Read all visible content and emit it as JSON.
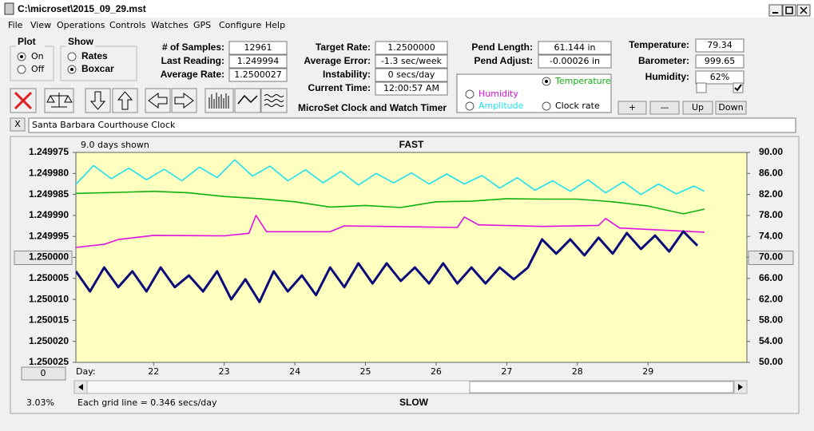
{
  "window": {
    "title": "C:\\microset\\2015_09_29.mst"
  },
  "menu": [
    "File",
    "View",
    "Operations",
    "Controls",
    "Watches",
    "GPS",
    "Configure",
    "Help"
  ],
  "plot_group": {
    "title": "Plot",
    "options": [
      "On",
      "Off"
    ],
    "selected": 0
  },
  "show_group": {
    "title": "Show",
    "options": [
      "Rates",
      "Boxcar"
    ],
    "selected": 1
  },
  "fields": [
    {
      "label": "# of Samples:",
      "value": "12961"
    },
    {
      "label": "Last Reading:",
      "value": "1.249994"
    },
    {
      "label": "Average Rate:",
      "value": "1.2500027"
    },
    {
      "label": "Target Rate:",
      "value": "1.2500000"
    },
    {
      "label": "Average Error:",
      "value": "-1.3 sec/week"
    },
    {
      "label": "Instability:",
      "value": "0 secs/day"
    },
    {
      "label": "Current Time:",
      "value": "12:00:57 AM"
    },
    {
      "label": "Pend Length:",
      "value": "61.144 in"
    },
    {
      "label": "Pend Adjust:",
      "value": "-0.00026 in"
    },
    {
      "label": "Temperature:",
      "value": "79.34"
    },
    {
      "label": "Barometer:",
      "value": "999.65"
    },
    {
      "label": "Humidity:",
      "value": "62%"
    }
  ],
  "checkboxes": [
    false,
    true
  ],
  "buttons": [
    "+",
    "—",
    "Up",
    "Down"
  ],
  "app_name": "MicroSet Clock and Watch Timer",
  "close_label": "X",
  "clock_name": "Santa Barbara Courthouse Clock",
  "status": {
    "percent": "3.03%",
    "grid_note": "Each grid line = 0.346 secs/day"
  },
  "chart_data": {
    "type": "line",
    "span_label": "9.0 days shown",
    "top_label": "FAST",
    "bottom_label": "SLOW",
    "x_label": "Day:",
    "offset_button": "0",
    "selected_series": 1,
    "button_tick": 5,
    "grid": false,
    "xlim": [
      20.9,
      30.4
    ],
    "xticks": [
      22,
      23,
      24,
      25,
      26,
      27,
      28,
      29
    ],
    "ylim": [
      1.250025,
      1.249975
    ],
    "yticks": [
      1.249975,
      {
        "value": 1.24998,
        "label": "1.249980"
      },
      1.249985,
      {
        "value": 1.24999,
        "label": "1.249990"
      },
      1.249995,
      {
        "value": 1.25,
        "label": "1.250000"
      },
      1.250005,
      {
        "value": 1.25001,
        "label": "1.250010"
      },
      1.250015,
      {
        "value": 1.25002,
        "label": "1.250020"
      },
      1.250025
    ],
    "y2lim": [
      50,
      90
    ],
    "y2ticks": [
      {
        "value": 90,
        "label": "90.00"
      },
      {
        "value": 86,
        "label": "86.00"
      },
      {
        "value": 82,
        "label": "82.00"
      },
      {
        "value": 78,
        "label": "78.00"
      },
      {
        "value": 74,
        "label": "74.00"
      },
      {
        "value": 70,
        "label": "70.00"
      },
      {
        "value": 66,
        "label": "66.00"
      },
      {
        "value": 62,
        "label": "62.00"
      },
      {
        "value": 58,
        "label": "58.00"
      },
      {
        "value": 54,
        "label": "54.00"
      },
      {
        "value": 50,
        "label": "50.00"
      }
    ],
    "series": [
      {
        "name": "Clock rate",
        "color": "#0a0a78",
        "axis": "y",
        "x": [
          20.9,
          21.1,
          21.3,
          21.5,
          21.7,
          21.9,
          22.1,
          22.3,
          22.5,
          22.7,
          22.9,
          23.1,
          23.3,
          23.5,
          23.7,
          23.9,
          24.1,
          24.3,
          24.5,
          24.7,
          24.9,
          25.1,
          25.3,
          25.5,
          25.7,
          25.9,
          26.1,
          26.3,
          26.5,
          26.7,
          26.9,
          27.1,
          27.3,
          27.5,
          27.7,
          27.9,
          28.1,
          28.3,
          28.5,
          28.7,
          28.9,
          29.1,
          29.3,
          29.5,
          29.7
        ],
        "values": [
          1.2500033,
          1.2500081,
          1.2500024,
          1.2500071,
          1.2500033,
          1.2500081,
          1.2500024,
          1.2500071,
          1.2500043,
          1.2500081,
          1.2500033,
          1.25001,
          1.2500052,
          1.2500106,
          1.2500033,
          1.2500081,
          1.2500043,
          1.250009,
          1.2500024,
          1.2500071,
          1.2500014,
          1.2500062,
          1.2500014,
          1.2500056,
          1.2500024,
          1.2500062,
          1.2500014,
          1.2500062,
          1.2500024,
          1.2500062,
          1.2500024,
          1.2500052,
          1.2500024,
          1.2499957,
          1.2499991,
          1.2499957,
          1.2499995,
          1.2499953,
          1.2499991,
          1.2499942,
          1.249998,
          1.2499948,
          1.2499986,
          1.2499938,
          1.2499972
        ]
      },
      {
        "name": "Temperature",
        "color": "#10b010",
        "axis": "y2",
        "x": [
          20.9,
          21.5,
          22,
          22.5,
          23,
          23.5,
          24,
          24.5,
          25,
          25.5,
          26,
          26.5,
          27,
          27.5,
          28,
          28.5,
          29,
          29.5,
          29.8
        ],
        "values": [
          82.2,
          82.4,
          82.6,
          82.3,
          81.6,
          81.2,
          80.6,
          79.6,
          79.9,
          79.5,
          80.6,
          80.7,
          81.2,
          81.1,
          81.1,
          80.6,
          79.8,
          78.3,
          79.2
        ]
      },
      {
        "name": "Humidity",
        "color": "#e010e0",
        "axis": "y2",
        "x": [
          20.9,
          21.3,
          21.5,
          22,
          23,
          23.35,
          23.45,
          23.6,
          24.5,
          24.7,
          26.3,
          26.4,
          26.6,
          27.5,
          28.3,
          28.4,
          28.6,
          29.8
        ],
        "values": [
          71.9,
          72.5,
          73.4,
          74.2,
          74.1,
          74.6,
          78.0,
          74.9,
          74.9,
          76.0,
          75.7,
          77.7,
          76.2,
          75.9,
          76.1,
          77.4,
          75.6,
          74.8
        ]
      },
      {
        "name": "Amplitude",
        "color": "#20e0f0",
        "axis": "y2",
        "x": [
          20.9,
          21.15,
          21.4,
          21.65,
          21.9,
          22.15,
          22.4,
          22.65,
          22.9,
          23.15,
          23.4,
          23.65,
          23.9,
          24.15,
          24.4,
          24.65,
          24.9,
          25.15,
          25.4,
          25.65,
          25.9,
          26.15,
          26.4,
          26.65,
          26.9,
          27.15,
          27.4,
          27.65,
          27.9,
          28.15,
          28.4,
          28.65,
          28.9,
          29.15,
          29.4,
          29.65,
          29.8
        ],
        "values": [
          83.9,
          87.5,
          85.0,
          87.0,
          84.8,
          86.8,
          84.6,
          87.2,
          85.2,
          88.6,
          85.5,
          87.4,
          84.6,
          86.7,
          84.2,
          86.4,
          83.8,
          86.0,
          84.2,
          86.1,
          84.0,
          85.9,
          84.0,
          85.6,
          83.2,
          85.2,
          82.8,
          84.6,
          82.6,
          84.8,
          82.3,
          84.4,
          82.0,
          84.0,
          82.1,
          83.6,
          82.6
        ]
      }
    ]
  }
}
